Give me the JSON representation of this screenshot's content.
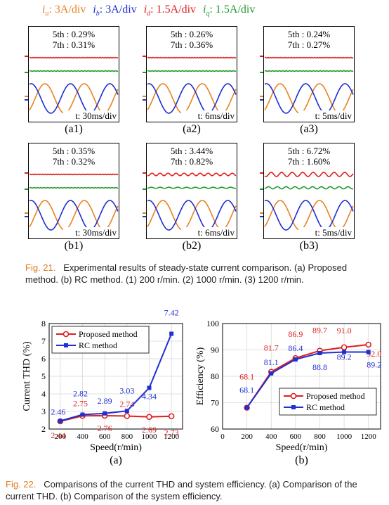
{
  "legend_items": [
    {
      "symbol": "i",
      "sub": "a",
      "text": ": 3A/div",
      "color": "#e8821f"
    },
    {
      "symbol": "i",
      "sub": "b",
      "text": ": 3A/div",
      "color": "#1f2fd1"
    },
    {
      "symbol": "i",
      "sub": "d",
      "text": ": 1.5A/div",
      "color": "#e01e1e"
    },
    {
      "symbol": "i",
      "sub": "q",
      "text": ": 1.5A/div",
      "color": "#1f9a2a"
    }
  ],
  "scopes": [
    {
      "id": "a1",
      "h5": "5th : 0.29%",
      "h7": "7th : 0.31%",
      "time": "t: 30ms/div",
      "label": "(a1)",
      "period": 1.0,
      "ripple": 0
    },
    {
      "id": "a2",
      "h5": "5th : 0.26%",
      "h7": "7th : 0.36%",
      "time": "t: 6ms/div",
      "label": "(a2)",
      "period": 1.0,
      "ripple": 0
    },
    {
      "id": "a3",
      "h5": "5th : 0.24%",
      "h7": "7th : 0.27%",
      "time": "t: 5ms/div",
      "label": "(a3)",
      "period": 1.0,
      "ripple": 0
    },
    {
      "id": "b1",
      "h5": "5th : 0.35%",
      "h7": "7th : 0.32%",
      "time": "t: 30ms/div",
      "label": "(b1)",
      "period": 1.0,
      "ripple": 0
    },
    {
      "id": "b2",
      "h5": "5th : 3.44%",
      "h7": "7th : 0.82%",
      "time": "t: 6ms/div",
      "label": "(b2)",
      "period": 1.0,
      "ripple": 1
    },
    {
      "id": "b3",
      "h5": "5th : 6.72%",
      "h7": "7th : 1.60%",
      "time": "t: 5ms/div",
      "label": "(b3)",
      "period": 1.0,
      "ripple": 2
    }
  ],
  "fig21": {
    "figno": "Fig. 21.",
    "text": "Experimental results of steady-state current comparison. (a) Proposed method. (b) RC method. (1) 200 r/min. (2) 1000 r/min. (3) 1200 r/min."
  },
  "fig22": {
    "figno": "Fig. 22.",
    "text": "Comparisons of the current THD and system efficiency. (a) Comparison of the current THD. (b) Comparison of the system efficiency."
  },
  "chart_data": [
    {
      "type": "line",
      "label": "(a)",
      "xlabel": "Speed(r/min)",
      "ylabel": "Current THD (%)",
      "x": [
        200,
        400,
        600,
        800,
        1000,
        1200
      ],
      "xticks": [
        200,
        400,
        600,
        800,
        1000,
        1200
      ],
      "yticks": [
        2,
        3,
        4,
        5,
        6,
        7,
        8
      ],
      "xlim": [
        100,
        1300
      ],
      "ylim": [
        2,
        8
      ],
      "grid": true,
      "legend_position": "top-left",
      "series": [
        {
          "name": "Proposed method",
          "color": "#e01e1e",
          "marker": "circle",
          "values": [
            2.44,
            2.75,
            2.76,
            2.74,
            2.69,
            2.73
          ],
          "labels": [
            "2.44",
            "2.75",
            "2.76",
            "2.74",
            "2.69",
            "2.73"
          ]
        },
        {
          "name": "RC method",
          "color": "#1f2fd1",
          "marker": "square",
          "values": [
            2.46,
            2.82,
            2.89,
            3.03,
            4.34,
            7.42
          ],
          "labels": [
            "2.46",
            "2.82",
            "2.89",
            "3.03",
            "4.34",
            "7.42"
          ]
        }
      ]
    },
    {
      "type": "line",
      "label": "(b)",
      "xlabel": "Speed(r/min)",
      "ylabel": "Efficiency (%)",
      "x": [
        200,
        400,
        600,
        800,
        1000,
        1200
      ],
      "xticks": [
        0,
        200,
        400,
        600,
        800,
        1000,
        1200
      ],
      "yticks": [
        60,
        70,
        80,
        90,
        100
      ],
      "xlim": [
        0,
        1300
      ],
      "ylim": [
        60,
        100
      ],
      "grid": true,
      "legend_position": "bottom-right",
      "series": [
        {
          "name": "Proposed method",
          "color": "#e01e1e",
          "marker": "circle",
          "values": [
            68.1,
            81.7,
            86.9,
            89.7,
            91.0,
            92.0
          ],
          "labels": [
            "68.1",
            "81.7",
            "86.9",
            "89.7",
            "91.0",
            "92.0"
          ]
        },
        {
          "name": "RC method",
          "color": "#1f2fd1",
          "marker": "square",
          "values": [
            68.1,
            81.1,
            86.4,
            88.8,
            89.2,
            89.2
          ],
          "labels": [
            "68.1",
            "81.1",
            "86.4",
            "88.8",
            "89.2",
            "89.2"
          ]
        }
      ]
    }
  ]
}
